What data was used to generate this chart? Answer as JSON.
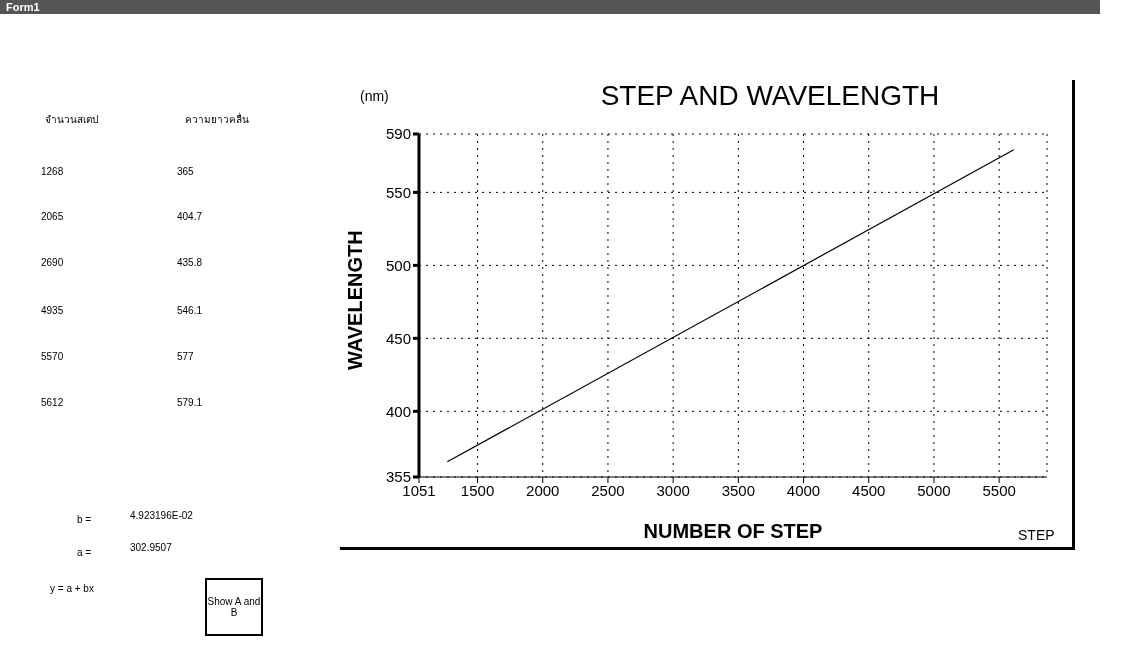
{
  "chart_data": {
    "type": "line",
    "title": "STEP AND WAVELENGTH",
    "xlabel": "NUMBER OF STEP",
    "ylabel": "WAVELENGTH",
    "x": [
      1268,
      5612
    ],
    "series": [
      {
        "color": "#000000",
        "values": [
          365.4,
          579.2
        ]
      }
    ],
    "xlim": [
      1051,
      5867
    ],
    "xticks": [
      1051,
      1500,
      2000,
      2500,
      3000,
      3500,
      4000,
      4500,
      5000,
      5500
    ],
    "ylim": [
      355,
      590
    ],
    "yticks": [
      355,
      400,
      450,
      500,
      550,
      590
    ],
    "grid": true,
    "marker": "none",
    "line_style": "solid",
    "annotations": [
      "Form1",
      "จำนวนสเตป",
      "ความยาวคลื่น",
      "1268",
      "365",
      "2065",
      "404.7",
      "2690",
      "435.8",
      "4935",
      "546.1",
      "5570",
      "577",
      "5612",
      "579.1",
      "b =",
      "4.923196E-02",
      "a =",
      "302.9507",
      "y = a + bx",
      "Show A and B",
      "(nm)",
      "STEP"
    ]
  }
}
